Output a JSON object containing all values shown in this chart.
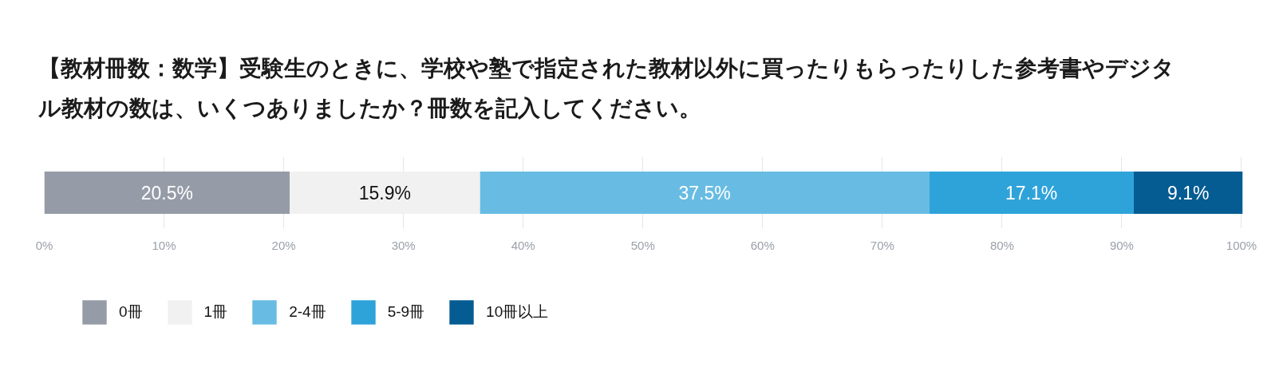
{
  "chart_data": {
    "type": "bar",
    "orientation": "horizontal",
    "stacked": true,
    "title": "【教材冊数：数学】受験生のときに、学校や塾で指定された教材以外に買ったりもらったりした参考書やデジタル教材の数は、いくつありましたか？冊数を記入してください。",
    "categories": [
      null
    ],
    "series": [
      {
        "name": "0冊",
        "color": "#959ca7",
        "values": [
          20.5
        ],
        "value_labels": [
          "20.5%"
        ]
      },
      {
        "name": "1冊",
        "color": "#f1f1f1",
        "values": [
          15.9
        ],
        "value_labels": [
          "15.9%"
        ]
      },
      {
        "name": "2-4冊",
        "color": "#68bce3",
        "values": [
          37.5
        ],
        "value_labels": [
          "37.5%"
        ]
      },
      {
        "name": "5-9冊",
        "color": "#2ea3da",
        "values": [
          17.1
        ],
        "value_labels": [
          "17.1%"
        ]
      },
      {
        "name": "10冊以上",
        "color": "#045c92",
        "values": [
          9.1
        ],
        "value_labels": [
          "9.1%"
        ]
      }
    ],
    "xlim": [
      0,
      100.1
    ],
    "xticks": [
      {
        "value": 0,
        "label": "0%"
      },
      {
        "value": 10,
        "label": "10%"
      },
      {
        "value": 20,
        "label": "20%"
      },
      {
        "value": 30,
        "label": "30%"
      },
      {
        "value": 40,
        "label": "40%"
      },
      {
        "value": 50,
        "label": "50%"
      },
      {
        "value": 60,
        "label": "60%"
      },
      {
        "value": 70,
        "label": "70%"
      },
      {
        "value": 80,
        "label": "80%"
      },
      {
        "value": 90,
        "label": "90%"
      },
      {
        "value": 100,
        "label": "100%"
      }
    ],
    "grid": "x",
    "legend": "bottom"
  }
}
